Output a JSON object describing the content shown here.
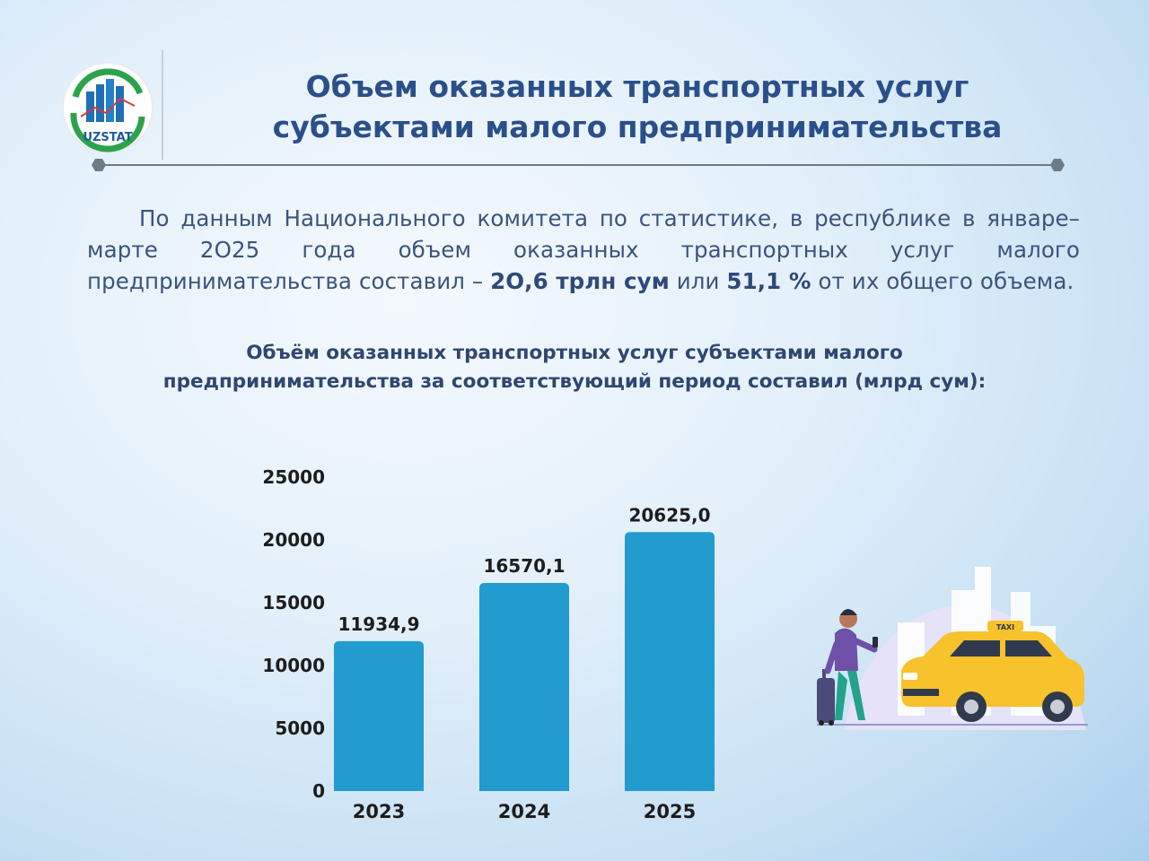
{
  "header": {
    "logo_text": "UZSTAT",
    "title_line1": "Объем оказанных транспортных услуг",
    "title_line2": "субъектами малого предпринимательства"
  },
  "intro": {
    "part1": "По данным Национального комитета по статистике, в республике в январе–марте 2О25 года объем оказанных транспортных услуг малого предпринимательства составил – ",
    "value_trln": "2О,6 трлн сум",
    "part2": " или ",
    "value_percent": "51,1 %",
    "part3": " от их общего объема."
  },
  "chart_title": "Объём оказанных транспортных услуг субъектами малого предпринимательства за соответствующий период cоставил (млрд сум):",
  "chart_data": {
    "type": "bar",
    "categories": [
      "2023",
      "2024",
      "2025"
    ],
    "values": [
      11934.9,
      16570.1,
      20625.0
    ],
    "value_labels": [
      "11934,9",
      "16570,1",
      "20625,0"
    ],
    "ylim": [
      0,
      25000
    ],
    "yticks": [
      "0",
      "5000",
      "10000",
      "15000",
      "20000",
      "25000"
    ],
    "bar_color": "#229bcf",
    "grid": false,
    "legend": "none"
  },
  "colors": {
    "title": "#2b4f89",
    "text": "#3b547c",
    "accent": "#229bcf",
    "taxi": "#f7c22b"
  },
  "illustration": {
    "taxi_sign_text": "TAXI"
  }
}
